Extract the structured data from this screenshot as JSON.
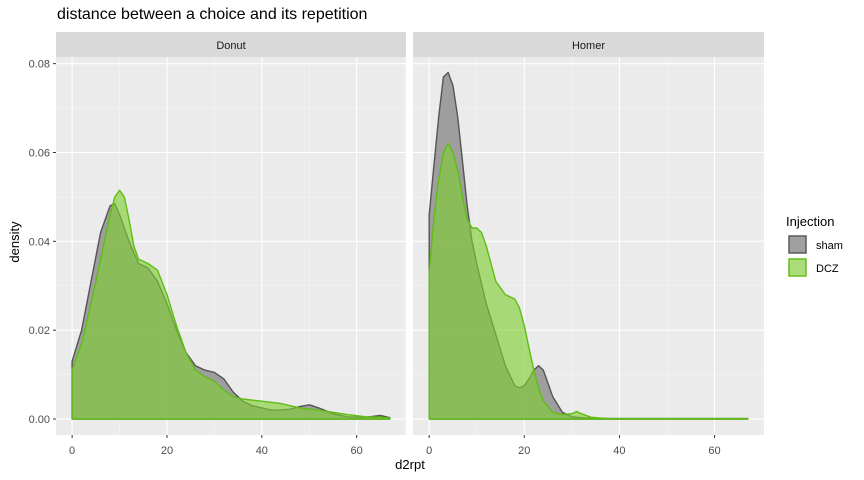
{
  "chart_data": {
    "type": "area",
    "title": "distance between a choice and its repetition",
    "xlabel": "d2rpt",
    "ylabel": "density",
    "xlim": [
      -3.4,
      70.4
    ],
    "ylim": [
      -0.0036,
      0.0815
    ],
    "xticks": [
      0,
      20,
      40,
      60
    ],
    "yticks": [
      0.0,
      0.02,
      0.04,
      0.06,
      0.08
    ],
    "ytick_labels": [
      "0.00",
      "0.02",
      "0.04",
      "0.06",
      "0.08"
    ],
    "grid": true,
    "legend": {
      "title": "Injection",
      "position": "right",
      "entries": [
        "sham",
        "DCZ"
      ]
    },
    "colors": {
      "sham_fill": "#7f7f7f",
      "sham_line": "#555555",
      "DCZ_fill": "#7fcf30",
      "DCZ_line": "#5fbd14",
      "panel_bg": "#ebebeb",
      "strip_bg": "#d9d9d9"
    },
    "panels": [
      {
        "name": "Donut",
        "series": [
          {
            "name": "sham",
            "x": [
              0,
              2,
              4,
              6,
              8,
              9,
              10,
              12,
              14,
              16,
              18,
              20,
              22,
              24,
              26,
              28,
              30,
              32,
              34,
              36,
              38,
              40,
              42,
              44,
              46,
              48,
              50,
              52,
              55,
              58,
              62,
              65,
              67
            ],
            "y": [
              0.013,
              0.02,
              0.031,
              0.042,
              0.048,
              0.0485,
              0.046,
              0.04,
              0.035,
              0.034,
              0.031,
              0.026,
              0.02,
              0.015,
              0.012,
              0.011,
              0.0105,
              0.009,
              0.006,
              0.004,
              0.003,
              0.0025,
              0.002,
              0.002,
              0.0022,
              0.0028,
              0.0032,
              0.0025,
              0.0012,
              0.0005,
              0.0004,
              0.0008,
              0.0003
            ]
          },
          {
            "name": "DCZ",
            "x": [
              0,
              2,
              4,
              6,
              8,
              9,
              10,
              11,
              12,
              13,
              14,
              16,
              18,
              20,
              22,
              24,
              26,
              28,
              30,
              32,
              34,
              36,
              40,
              44,
              48,
              52,
              55,
              58,
              62,
              65,
              67
            ],
            "y": [
              0.011,
              0.017,
              0.026,
              0.036,
              0.046,
              0.05,
              0.0515,
              0.05,
              0.045,
              0.039,
              0.036,
              0.035,
              0.0335,
              0.028,
              0.021,
              0.015,
              0.011,
              0.0095,
              0.0085,
              0.0065,
              0.005,
              0.0045,
              0.004,
              0.0035,
              0.0025,
              0.002,
              0.0015,
              0.001,
              0.0005,
              0.0004,
              0.0002
            ]
          }
        ]
      },
      {
        "name": "Homer",
        "series": [
          {
            "name": "sham",
            "x": [
              0,
              1,
              2,
              3,
              4,
              5,
              6,
              7,
              8,
              9,
              10,
              12,
              14,
              16,
              18,
              19,
              20,
              21,
              22,
              23,
              24,
              25,
              26,
              28,
              30,
              32,
              34,
              36,
              38,
              40,
              45,
              50,
              60,
              67
            ],
            "y": [
              0.046,
              0.057,
              0.068,
              0.077,
              0.078,
              0.075,
              0.068,
              0.058,
              0.048,
              0.04,
              0.035,
              0.026,
              0.019,
              0.012,
              0.0075,
              0.007,
              0.0075,
              0.009,
              0.011,
              0.012,
              0.011,
              0.008,
              0.005,
              0.0015,
              0.0005,
              0.0003,
              0.0002,
              0.0001,
              0.0001,
              0.0001,
              0.0001,
              0.0001,
              0.0001,
              0.0001
            ]
          },
          {
            "name": "DCZ",
            "x": [
              0,
              1,
              2,
              3,
              4,
              5,
              6,
              7,
              8,
              9,
              10,
              11,
              12,
              13,
              14,
              16,
              18,
              19,
              20,
              21,
              22,
              23,
              24,
              26,
              28,
              30,
              31,
              32,
              34,
              36,
              38,
              40,
              45,
              50,
              60,
              67
            ],
            "y": [
              0.033,
              0.045,
              0.054,
              0.06,
              0.062,
              0.06,
              0.056,
              0.05,
              0.045,
              0.043,
              0.043,
              0.042,
              0.039,
              0.035,
              0.031,
              0.028,
              0.027,
              0.025,
              0.021,
              0.016,
              0.011,
              0.007,
              0.004,
              0.0015,
              0.001,
              0.0012,
              0.0017,
              0.0012,
              0.0004,
              0.0002,
              0.0001,
              0.0001,
              0.0001,
              0.0001,
              0.0001,
              0.0001
            ]
          }
        ]
      }
    ]
  }
}
